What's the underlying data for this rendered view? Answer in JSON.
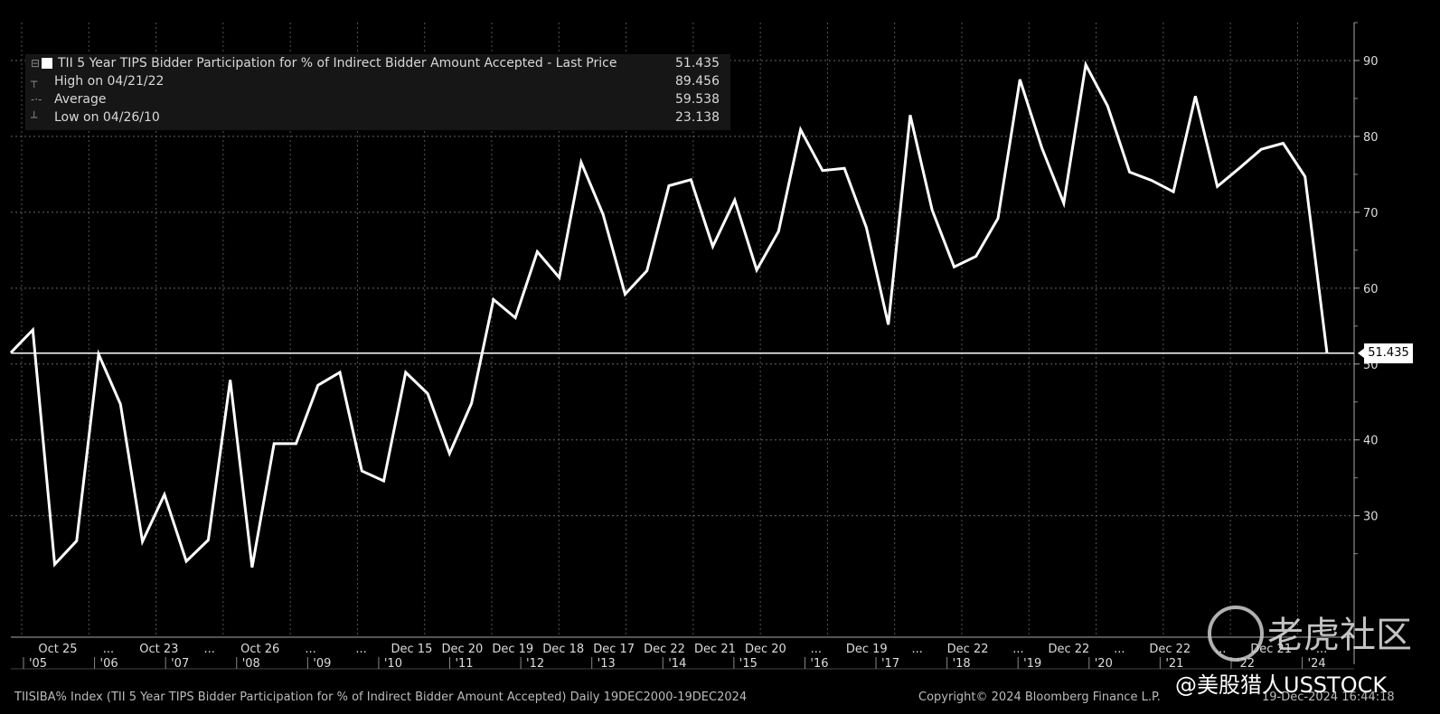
{
  "chart_data": {
    "type": "line",
    "title": "TII 5 Year TIPS Bidder Participation for % of Indirect Bidder Amount Accepted - Last Price",
    "series": [
      {
        "name": "TII 5 Year TIPS Bidder Participation for % of Indirect Bidder Amount Accepted",
        "values": [
          51.5,
          54.5,
          23.6,
          26.7,
          51.3,
          44.7,
          26.6,
          32.8,
          24.0,
          26.8,
          47.9,
          23.2,
          39.5,
          39.5,
          47.2,
          48.9,
          35.9,
          34.6,
          48.9,
          46.1,
          38.2,
          44.8,
          58.5,
          56.1,
          64.8,
          61.4,
          76.6,
          69.7,
          59.2,
          62.3,
          73.5,
          74.3,
          65.5,
          71.6,
          62.4,
          67.5,
          80.9,
          75.5,
          75.8,
          68.0,
          55.2,
          82.8,
          70.3,
          62.8,
          64.2,
          69.2,
          87.5,
          78.5,
          71.2,
          89.456,
          84.0,
          75.3,
          74.2,
          72.7,
          85.3,
          73.4,
          75.8,
          78.3,
          79.1,
          74.7,
          51.435
        ]
      }
    ],
    "ylim": [
      14,
      95
    ],
    "yticks": [
      30,
      40,
      50,
      60,
      70,
      80,
      90
    ],
    "x_labels": [
      "Oct 25",
      "...",
      "Oct 23",
      "...",
      "Oct 26",
      "...",
      "...",
      "Dec 15",
      "Dec 20",
      "Dec 19",
      "Dec 18",
      "Dec 17",
      "Dec 22",
      "Dec 21",
      "Dec 20",
      "...",
      "Dec 19",
      "...",
      "Dec 22",
      "...",
      "Dec 22",
      "...",
      "Dec 22",
      "...",
      "Dec 21",
      "..."
    ],
    "year_labels": [
      "'05",
      "'06",
      "'07",
      "'08",
      "'09",
      "'10",
      "'11",
      "'12",
      "'13",
      "'14",
      "'15",
      "'16",
      "'17",
      "'18",
      "'19",
      "'20",
      "'21",
      "'22",
      "'24"
    ],
    "last_price": 51.435,
    "legend": [
      {
        "label": "TII 5 Year TIPS Bidder Participation for % of Indirect Bidder Amount Accepted - Last Price",
        "value": "51.435"
      },
      {
        "label": "High on 04/21/22",
        "value": "89.456"
      },
      {
        "label": "Average",
        "value": "59.538"
      },
      {
        "label": "Low on 04/26/10",
        "value": "23.138"
      }
    ],
    "grid": true,
    "legend_position": "top-left",
    "line_color": "#ffffff",
    "background": "#000000"
  },
  "footer": {
    "index_text": "TIISIBA% Index (TII 5 Year TIPS Bidder Participation for % of Indirect Bidder Amount Accepted)  Daily 19DEC2000-19DEC2024",
    "copyright": "Copyright© 2024 Bloomberg Finance L.P.",
    "timestamp": "19-Dec-2024 16:44:18"
  },
  "watermark": {
    "brand": "老虎社区",
    "handle": "@美股猎人USSTOCK"
  },
  "last_price_label": "51.435"
}
